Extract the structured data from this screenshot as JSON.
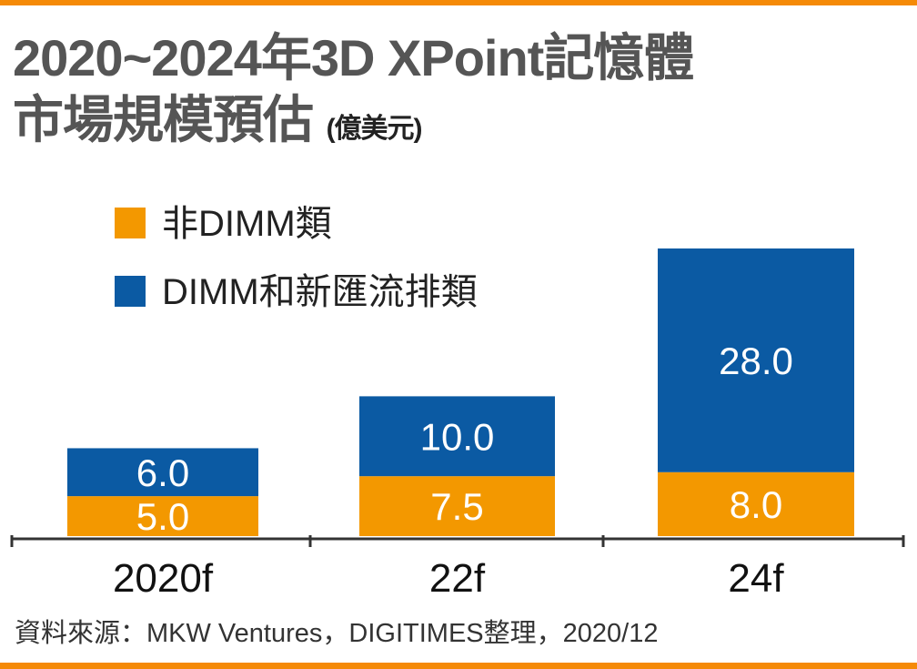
{
  "colors": {
    "accent": "#F58A07",
    "series_orange": "#F39800",
    "series_blue": "#0B5AA3"
  },
  "chart_data": {
    "type": "bar",
    "stacked": true,
    "title": "2020~2024年3D XPoint記憶體",
    "title_line2": "市場規模預估",
    "unit": "(億美元)",
    "categories": [
      "2020f",
      "22f",
      "24f"
    ],
    "series": [
      {
        "name": "非DIMM類",
        "color": "#F39800",
        "values": [
          5.0,
          7.5,
          8.0
        ]
      },
      {
        "name": "DIMM和新匯流排類",
        "color": "#0B5AA3",
        "values": [
          6.0,
          10.0,
          28.0
        ]
      }
    ],
    "data_labels": [
      [
        "5.0",
        "7.5",
        "8.0"
      ],
      [
        "6.0",
        "10.0",
        "28.0"
      ]
    ],
    "ylim": [
      0,
      36
    ],
    "grid": false,
    "legend_placement": "top-left",
    "source": "資料來源：MKW Ventures，DIGITIMES整理，2020/12"
  }
}
